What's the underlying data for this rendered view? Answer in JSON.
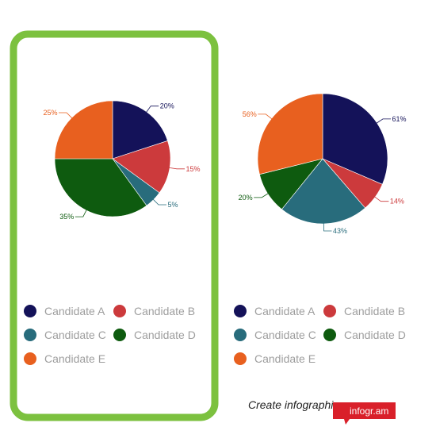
{
  "chart_data": [
    {
      "type": "pie",
      "title": "",
      "selected": true,
      "slices": [
        {
          "name": "Candidate A",
          "value": 20,
          "label": "20%"
        },
        {
          "name": "Candidate B",
          "value": 15,
          "label": "15%"
        },
        {
          "name": "Candidate C",
          "value": 5,
          "label": "5%"
        },
        {
          "name": "Candidate D",
          "value": 35,
          "label": "35%"
        },
        {
          "name": "Candidate E",
          "value": 25,
          "label": "25%"
        }
      ],
      "legend": [
        "Candidate A",
        "Candidate B",
        "Candidate C",
        "Candidate D",
        "Candidate E"
      ],
      "legend_position": "bottom"
    },
    {
      "type": "pie",
      "title": "",
      "selected": false,
      "slices": [
        {
          "name": "Candidate A",
          "value": 61,
          "label": "61%"
        },
        {
          "name": "Candidate B",
          "value": 14,
          "label": "14%"
        },
        {
          "name": "Candidate C",
          "value": 43,
          "label": "43%"
        },
        {
          "name": "Candidate D",
          "value": 20,
          "label": "20%"
        },
        {
          "name": "Candidate E",
          "value": 56,
          "label": "56%"
        }
      ],
      "legend": [
        "Candidate A",
        "Candidate B",
        "Candidate C",
        "Candidate D",
        "Candidate E"
      ],
      "legend_position": "bottom"
    }
  ],
  "colors": {
    "Candidate A": "#141259",
    "Candidate B": "#cc3a3c",
    "Candidate C": "#286c7c",
    "Candidate D": "#0e5b0f",
    "Candidate E": "#e8601f",
    "selection_border": "#7cc13f",
    "badge": "#d9202a"
  },
  "branding": {
    "tagline": "Create infographics",
    "badge": "infogr.am"
  }
}
